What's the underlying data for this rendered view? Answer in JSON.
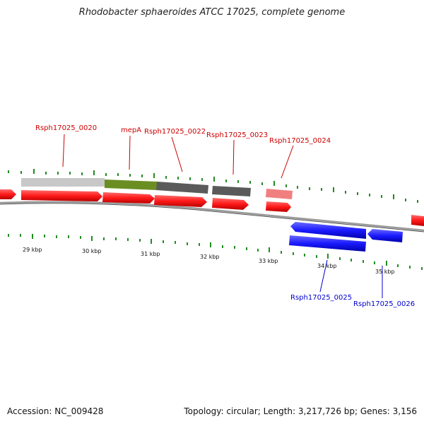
{
  "title": "Rhodobacter sphaeroides ATCC 17025, complete genome",
  "gene_labels": {
    "g0020": "Rsph17025_0020",
    "mepA": "mepA",
    "g0022": "Rsph17025_0022",
    "g0023": "Rsph17025_0023",
    "g0024": "Rsph17025_0024",
    "g0025": "Rsph17025_0025",
    "g0026": "Rsph17025_0026"
  },
  "scale_labels": {
    "k29": "29 kbp",
    "k30": "30 kbp",
    "k31": "31 kbp",
    "k32": "32 kbp",
    "k33": "33 kbp",
    "k34": "34 kbp",
    "k35": "35 kbp"
  },
  "footer": {
    "accession": "Accession: NC_009428",
    "stats": "Topology: circular; Length: 3,217,726 bp; Genes: 3,156"
  },
  "colors": {
    "forward_cds": "#ff1a1a",
    "reverse_cds": "#1a1aff",
    "forward_label": "#cc0000",
    "reverse_label": "#0000cc",
    "feature_grey_light": "#c8c8c8",
    "feature_green": "#6b8e23",
    "feature_grey_dark": "#5a5a5a",
    "feature_pink": "#f08080",
    "tick_green": "#228b22",
    "backbone": "#888888"
  }
}
